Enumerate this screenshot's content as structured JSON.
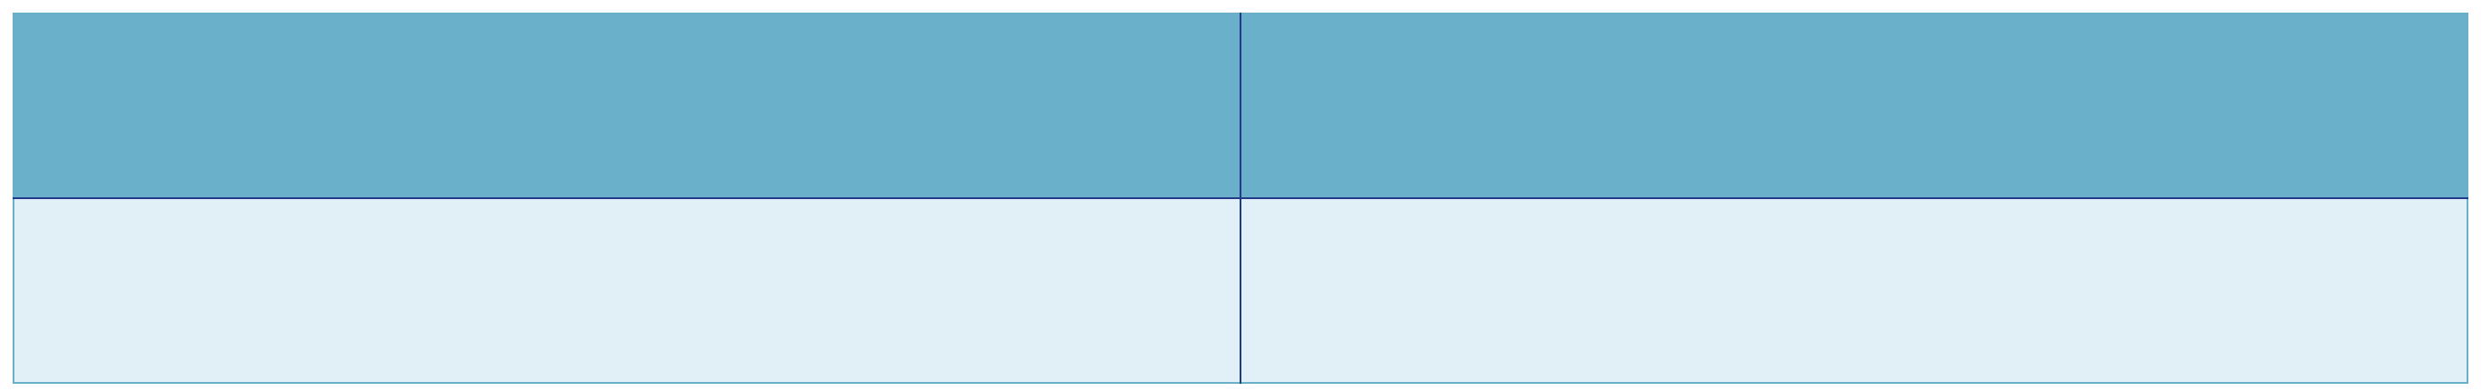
{
  "table": {
    "header": [
      "",
      ""
    ],
    "rows": [
      [
        "",
        ""
      ]
    ]
  },
  "colors": {
    "header_fill": "#6ab0ca",
    "body_fill": "#e1f0f6",
    "inner_rule": "#233a8a",
    "outer_rule": "#6ab0ca"
  }
}
